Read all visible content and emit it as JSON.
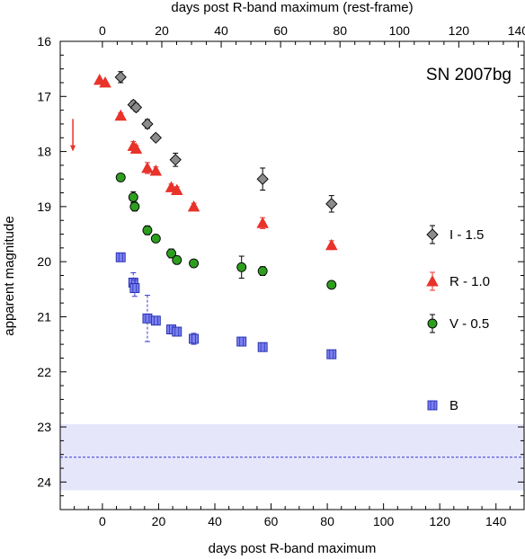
{
  "chart_data": {
    "type": "scatter",
    "title": "SN 2007bg",
    "xlabel": "days post R-band maximum",
    "xlabel_top": "days post R-band maximum (rest-frame)",
    "ylabel": "apparent magnitude",
    "xlim": [
      -15,
      150
    ],
    "ylim": [
      24.5,
      16
    ],
    "y_inverted": true,
    "x_ticks": [
      0,
      20,
      40,
      60,
      80,
      100,
      120,
      140
    ],
    "x_ticks_top": [
      0,
      20,
      40,
      60,
      80,
      100,
      120,
      140
    ],
    "top_axis_scale": 0.9466,
    "y_ticks": [
      16,
      17,
      18,
      19,
      20,
      21,
      22,
      23,
      24
    ],
    "x_minor_step": 5,
    "y_minor_step": 0.25,
    "grid": false,
    "legend_position": "right",
    "limit_band": {
      "y_center": 23.55,
      "y_low": 22.95,
      "y_high": 24.15,
      "color": "#e6e6fb",
      "line_color": "#3a3ad0"
    },
    "upper_limit_arrow": {
      "x": -10.5,
      "y_from": 17.8,
      "y_to": 18.0,
      "color": "#e8322a"
    },
    "series": [
      {
        "name": "I - 1.5",
        "marker": "diamond",
        "color": "#8c8c8c",
        "x": [
          6.5,
          11,
          12,
          16,
          19,
          26,
          57,
          81.5
        ],
        "y": [
          16.65,
          17.15,
          17.2,
          17.5,
          17.75,
          18.15,
          18.5,
          18.95
        ],
        "err": [
          0.1,
          0.07,
          0.07,
          0.08,
          0.06,
          0.12,
          0.2,
          0.15
        ]
      },
      {
        "name": "R - 1.0",
        "marker": "triangle",
        "color": "#e8322a",
        "x": [
          -1,
          1,
          6.5,
          11,
          12,
          16,
          19,
          24.5,
          26.5,
          32.5,
          57,
          81.5
        ],
        "y": [
          16.7,
          16.75,
          17.35,
          17.9,
          17.95,
          18.3,
          18.35,
          18.65,
          18.7,
          19.0,
          19.3,
          19.7
        ],
        "err": [
          0.03,
          0.03,
          0.05,
          0.08,
          0.06,
          0.1,
          0.07,
          0.06,
          0.06,
          0.06,
          0.1,
          0.08
        ]
      },
      {
        "name": "V - 0.5",
        "marker": "circle",
        "color": "#2e9e1f",
        "x": [
          6.5,
          11,
          11.5,
          16,
          19,
          24.5,
          26.5,
          32.5,
          49.5,
          57,
          81.5
        ],
        "y": [
          18.47,
          18.83,
          19.0,
          19.43,
          19.58,
          19.85,
          19.97,
          20.03,
          20.1,
          20.17,
          20.42
        ],
        "err": [
          0.03,
          0.1,
          0.08,
          0.08,
          0.06,
          0.08,
          0.07,
          0.05,
          0.2,
          0.08,
          0.06
        ]
      },
      {
        "name": "B",
        "marker": "square",
        "color": "#7b7ff0",
        "x": [
          6.5,
          11,
          11.5,
          16,
          19,
          24.5,
          26.5,
          32.5,
          49.5,
          57,
          81.5
        ],
        "y": [
          19.92,
          20.38,
          20.48,
          21.03,
          21.07,
          21.23,
          21.27,
          21.4,
          21.45,
          21.55,
          21.68
        ],
        "err": [
          0.05,
          0.18,
          0.15,
          0.42,
          0.06,
          0.06,
          0.06,
          0.1,
          0.05,
          0.07,
          0.05
        ]
      }
    ]
  }
}
